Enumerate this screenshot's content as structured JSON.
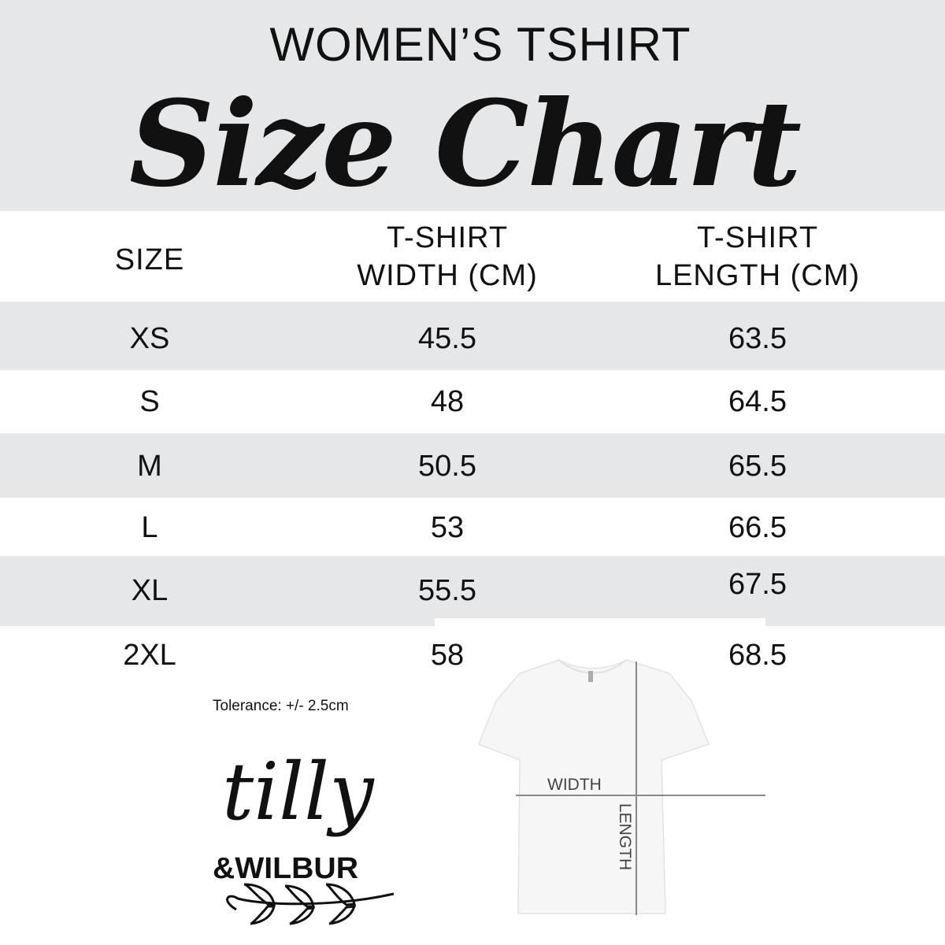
{
  "header": {
    "subtitle": "WOMEN’S TSHIRT",
    "title": "Size Chart"
  },
  "table": {
    "columns": [
      "SIZE",
      "T-SHIRT WIDTH (CM)",
      "T-SHIRT LENGTH (CM)"
    ],
    "column_lines": [
      [
        "SIZE"
      ],
      [
        "T-SHIRT",
        "WIDTH (CM)"
      ],
      [
        "T-SHIRT",
        "LENGTH (CM)"
      ]
    ],
    "rows": [
      [
        "XS",
        "45.5",
        "63.5"
      ],
      [
        "S",
        "48",
        "64.5"
      ],
      [
        "M",
        "50.5",
        "65.5"
      ],
      [
        "L",
        "53",
        "66.5"
      ],
      [
        "XL",
        "55.5",
        "67.5"
      ],
      [
        "2XL",
        "58",
        "68.5"
      ]
    ]
  },
  "tolerance": "Tolerance: +/- 2.5cm",
  "logo": {
    "line1": "tilly",
    "line2": "&WILBUR"
  },
  "diagram": {
    "width_label": "WIDTH",
    "length_label": "LENGTH"
  },
  "colors": {
    "band": "#e6e7e8",
    "text": "#111111",
    "line": "#888888"
  }
}
